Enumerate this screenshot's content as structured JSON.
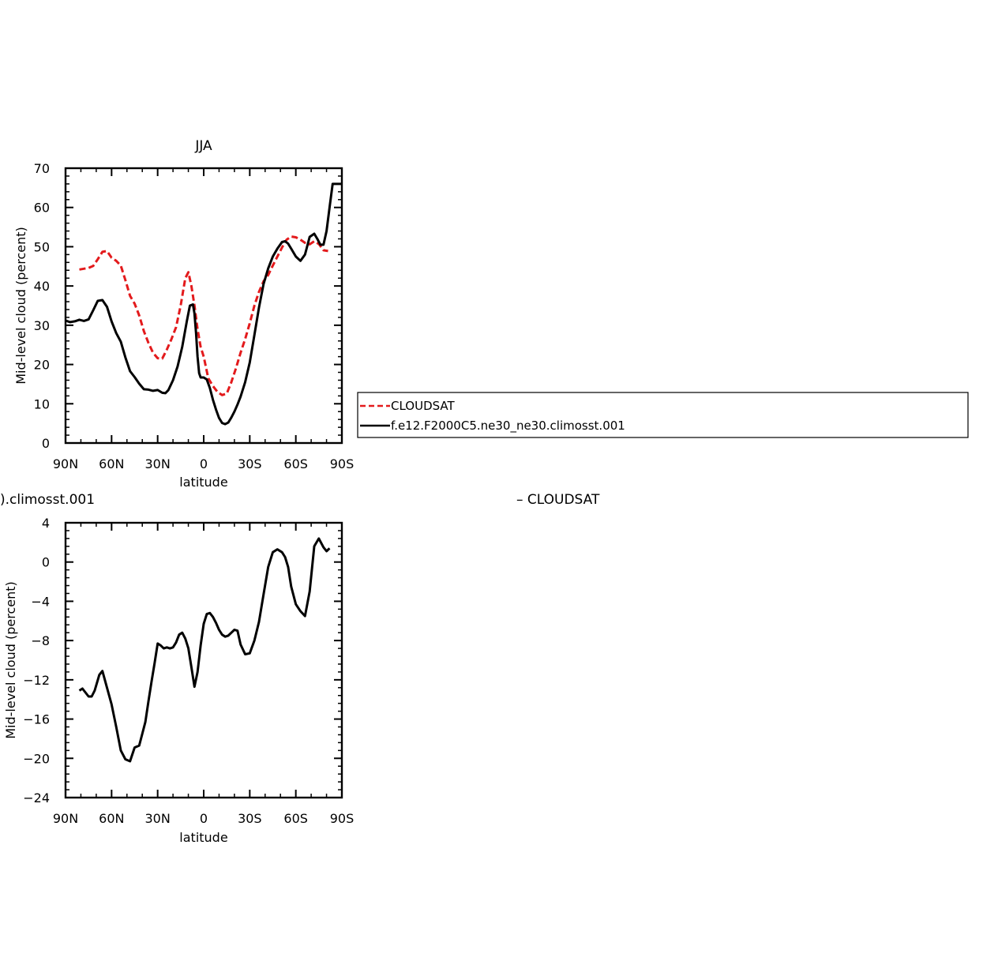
{
  "chart_data": [
    {
      "type": "line",
      "title": "JJA",
      "xlabel": "latitude",
      "ylabel": "Mid-level cloud (percent)",
      "xlim": [
        -90,
        90
      ],
      "ylim": [
        0,
        70
      ],
      "xticks": [
        -90,
        -60,
        -30,
        0,
        30,
        60,
        90
      ],
      "xticklabels": [
        "90N",
        "60N",
        "30N",
        "0",
        "30S",
        "60S",
        "90S"
      ],
      "yticks": [
        0,
        10,
        20,
        30,
        40,
        50,
        60,
        70
      ],
      "yticklabels": [
        "0",
        "10",
        "20",
        "30",
        "40",
        "50",
        "60",
        "70"
      ],
      "legend_position": "right",
      "series": [
        {
          "name": "CLOUDSAT",
          "color": "#e31a1c",
          "dash": "dashed",
          "x": [
            -81,
            -75,
            -72,
            -69,
            -66,
            -63,
            -60,
            -57,
            -54,
            -51,
            -48,
            -45,
            -42,
            -39,
            -36,
            -33,
            -30,
            -27,
            -24,
            -21,
            -18,
            -15,
            -12,
            -10,
            -8,
            -6,
            -4,
            -2,
            0,
            3,
            6,
            9,
            12,
            15,
            18,
            21,
            24,
            27,
            30,
            33,
            36,
            39,
            42,
            45,
            48,
            51,
            54,
            57,
            60,
            63,
            66,
            69,
            72,
            75,
            78,
            81
          ],
          "y": [
            44.2,
            44.6,
            45.1,
            46.8,
            48.7,
            48.9,
            47.2,
            46.4,
            45.2,
            41.5,
            37.5,
            35.5,
            32.5,
            28.5,
            25.5,
            23,
            21.6,
            21.5,
            23.8,
            26.5,
            29.5,
            35,
            42,
            43.5,
            40,
            35,
            29,
            24.5,
            22,
            16.5,
            14.5,
            13,
            12.2,
            12.6,
            15.5,
            19,
            23,
            26.5,
            30.5,
            35,
            38.5,
            41.2,
            42.8,
            45.2,
            47.5,
            49.8,
            51.8,
            52.6,
            52.4,
            51.8,
            51,
            50.6,
            51.4,
            50.7,
            49.1,
            48.9
          ]
        },
        {
          "name": "f.e12.F2000C5.ne30_ne30.climosst.001",
          "color": "#000000",
          "dash": "solid",
          "x": [
            -90,
            -87,
            -84,
            -81,
            -78,
            -75,
            -72,
            -69,
            -66,
            -63,
            -60,
            -57,
            -54,
            -51,
            -48,
            -45,
            -42,
            -39,
            -36,
            -33,
            -30,
            -27,
            -25,
            -23,
            -20,
            -17,
            -14,
            -11,
            -9,
            -7,
            -6,
            -5,
            -4,
            -3,
            -2,
            0,
            2,
            4,
            6,
            8,
            10,
            12,
            14,
            16,
            18,
            20,
            22,
            24,
            27,
            30,
            33,
            36,
            39,
            42,
            45,
            48,
            51,
            53,
            55,
            57,
            60,
            63,
            66,
            69,
            72,
            74,
            76,
            78,
            80,
            82,
            84,
            86,
            88,
            90
          ],
          "y": [
            31.2,
            30.8,
            31,
            31.4,
            31.1,
            31.5,
            33.8,
            36.2,
            36.4,
            34.7,
            31,
            28,
            25.8,
            21.8,
            18.3,
            16.8,
            15.1,
            13.7,
            13.6,
            13.3,
            13.5,
            12.8,
            12.7,
            13.5,
            16,
            19.5,
            24.5,
            31,
            35,
            35.3,
            33,
            28,
            22,
            17.8,
            16.7,
            16.7,
            16.2,
            14,
            11,
            8.5,
            6.4,
            5.1,
            4.8,
            5.2,
            6.5,
            8,
            9.8,
            11.8,
            15.5,
            20.5,
            27.5,
            34.5,
            40.5,
            44.5,
            47.5,
            49.5,
            51.2,
            51.4,
            50.8,
            49.5,
            47.5,
            46.4,
            48,
            52.5,
            53.3,
            52,
            50.5,
            50.5,
            54,
            60,
            66,
            66,
            66,
            66
          ]
        }
      ]
    },
    {
      "type": "line",
      "title": ").climosst.001",
      "title_right": "– CLOUDSAT",
      "xlabel": "latitude",
      "ylabel": "Mid-level cloud (percent)",
      "xlim": [
        -90,
        90
      ],
      "ylim": [
        -24,
        4
      ],
      "xticks": [
        -90,
        -60,
        -30,
        0,
        30,
        60,
        90
      ],
      "xticklabels": [
        "90N",
        "60N",
        "30N",
        "0",
        "30S",
        "60S",
        "90S"
      ],
      "yticks": [
        -24,
        -20,
        -16,
        -12,
        -8,
        -4,
        0,
        4
      ],
      "yticklabels": [
        "−24",
        "−20",
        "−16",
        "−12",
        "−8",
        "−4",
        "0",
        "4"
      ],
      "series": [
        {
          "color": "#000000",
          "dash": "solid",
          "x": [
            -81,
            -79,
            -77,
            -75,
            -73,
            -71,
            -68,
            -66,
            -63,
            -60,
            -57,
            -54,
            -51,
            -48,
            -45,
            -42,
            -40,
            -38,
            -36,
            -34,
            -32,
            -30,
            -28,
            -26,
            -24,
            -22,
            -20,
            -18,
            -16,
            -14,
            -12,
            -10,
            -8,
            -6,
            -4,
            -2,
            0,
            2,
            4,
            6,
            8,
            10,
            12,
            14,
            16,
            18,
            20,
            22,
            24,
            27,
            30,
            33,
            36,
            39,
            42,
            45,
            48,
            51,
            53,
            55,
            57,
            60,
            63,
            66,
            69,
            72,
            75,
            78,
            80,
            82
          ],
          "y": [
            -13.1,
            -12.9,
            -13.3,
            -13.7,
            -13.7,
            -13.1,
            -11.5,
            -11.1,
            -12.8,
            -14.5,
            -16.8,
            -19.2,
            -20.1,
            -20.3,
            -18.9,
            -18.7,
            -17.5,
            -16.3,
            -14.2,
            -12.2,
            -10.3,
            -8.3,
            -8.5,
            -8.8,
            -8.7,
            -8.8,
            -8.7,
            -8.2,
            -7.4,
            -7.2,
            -7.8,
            -8.8,
            -10.7,
            -12.7,
            -11.2,
            -8.5,
            -6.3,
            -5.3,
            -5.2,
            -5.6,
            -6.2,
            -6.9,
            -7.4,
            -7.6,
            -7.5,
            -7.2,
            -6.9,
            -7,
            -8.4,
            -9.4,
            -9.3,
            -8,
            -6.1,
            -3.3,
            -0.5,
            1,
            1.3,
            1,
            0.5,
            -0.5,
            -2.5,
            -4.3,
            -5,
            -5.5,
            -3,
            1.6,
            2.4,
            1.5,
            1.1,
            1.4
          ]
        }
      ]
    }
  ]
}
